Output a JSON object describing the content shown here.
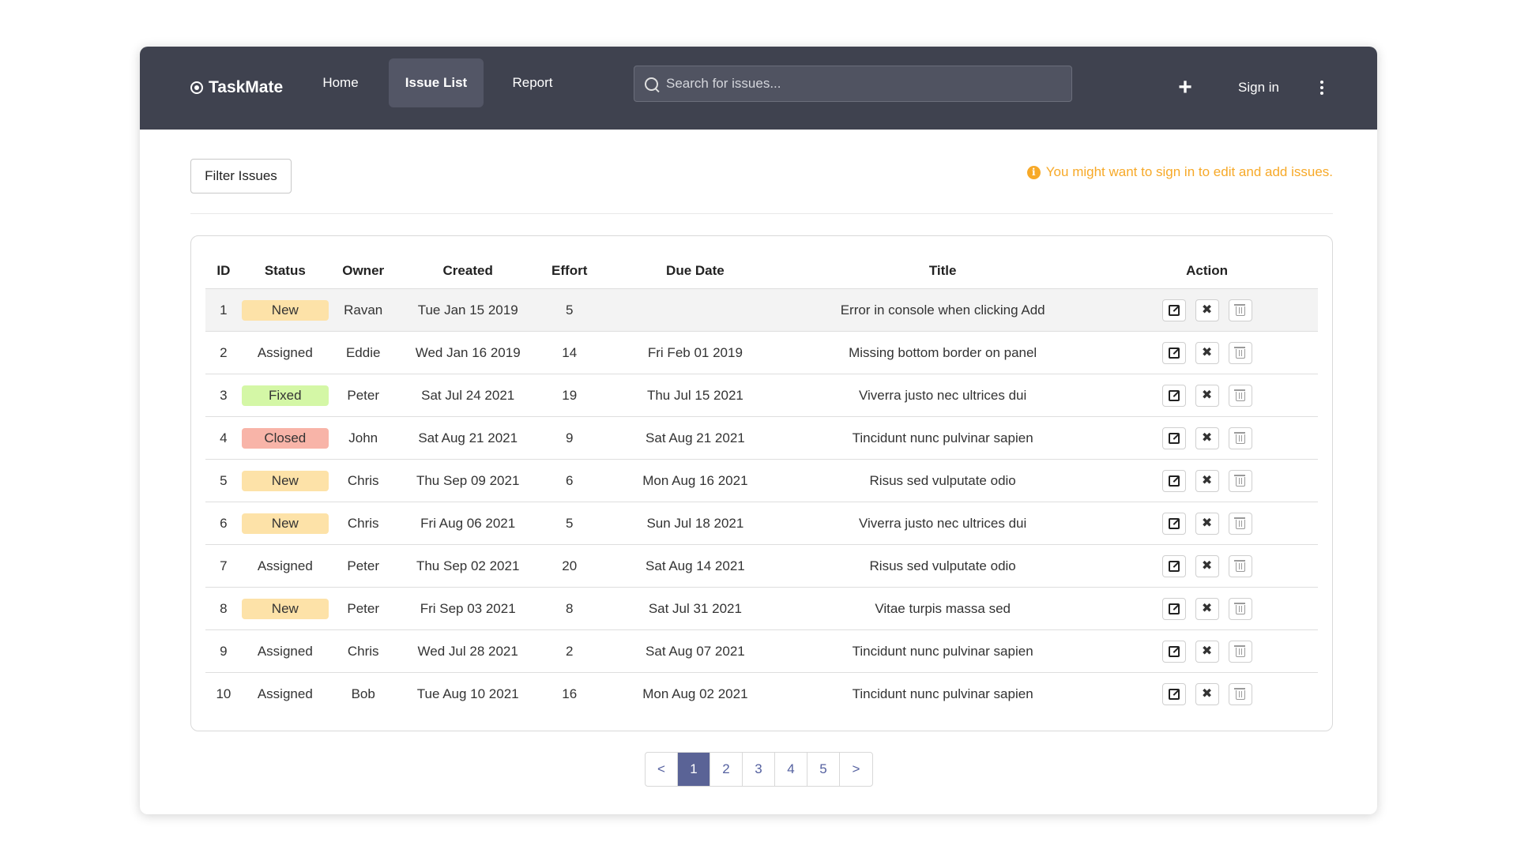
{
  "navbar": {
    "brand": "TaskMate",
    "home": "Home",
    "issue_list": "Issue List",
    "report": "Report",
    "search_placeholder": "Search for issues...",
    "plus": "+",
    "sign_in": "Sign in"
  },
  "filter_button": "Filter Issues",
  "notice": "You might want to sign in to edit and add issues.",
  "colors": {
    "navbar_bg": "#3f424f",
    "notice": "#f7a928",
    "badge_new": "#fde2a8",
    "badge_fixed": "#d4f7a6",
    "badge_closed": "#f8b4a8",
    "page_active": "#5a6396"
  },
  "table": {
    "headers": [
      "ID",
      "Status",
      "Owner",
      "Created",
      "Effort",
      "Due Date",
      "Title",
      "Action"
    ],
    "rows": [
      {
        "id": "1",
        "status": "New",
        "owner": "Ravan",
        "created": "Tue Jan 15 2019",
        "effort": "5",
        "due": "",
        "title": "Error in console when clicking Add"
      },
      {
        "id": "2",
        "status": "Assigned",
        "owner": "Eddie",
        "created": "Wed Jan 16 2019",
        "effort": "14",
        "due": "Fri Feb 01 2019",
        "title": "Missing bottom border on panel"
      },
      {
        "id": "3",
        "status": "Fixed",
        "owner": "Peter",
        "created": "Sat Jul 24 2021",
        "effort": "19",
        "due": "Thu Jul 15 2021",
        "title": "Viverra justo nec ultrices dui"
      },
      {
        "id": "4",
        "status": "Closed",
        "owner": "John",
        "created": "Sat Aug 21 2021",
        "effort": "9",
        "due": "Sat Aug 21 2021",
        "title": "Tincidunt nunc pulvinar sapien"
      },
      {
        "id": "5",
        "status": "New",
        "owner": "Chris",
        "created": "Thu Sep 09 2021",
        "effort": "6",
        "due": "Mon Aug 16 2021",
        "title": "Risus sed vulputate odio"
      },
      {
        "id": "6",
        "status": "New",
        "owner": "Chris",
        "created": "Fri Aug 06 2021",
        "effort": "5",
        "due": "Sun Jul 18 2021",
        "title": "Viverra justo nec ultrices dui"
      },
      {
        "id": "7",
        "status": "Assigned",
        "owner": "Peter",
        "created": "Thu Sep 02 2021",
        "effort": "20",
        "due": "Sat Aug 14 2021",
        "title": "Risus sed vulputate odio"
      },
      {
        "id": "8",
        "status": "New",
        "owner": "Peter",
        "created": "Fri Sep 03 2021",
        "effort": "8",
        "due": "Sat Jul 31 2021",
        "title": "Vitae turpis massa sed"
      },
      {
        "id": "9",
        "status": "Assigned",
        "owner": "Chris",
        "created": "Wed Jul 28 2021",
        "effort": "2",
        "due": "Sat Aug 07 2021",
        "title": "Tincidunt nunc pulvinar sapien"
      },
      {
        "id": "10",
        "status": "Assigned",
        "owner": "Bob",
        "created": "Tue Aug 10 2021",
        "effort": "16",
        "due": "Mon Aug 02 2021",
        "title": "Tincidunt nunc pulvinar sapien"
      }
    ]
  },
  "pagination": {
    "prev": "<",
    "pages": [
      "1",
      "2",
      "3",
      "4",
      "5"
    ],
    "next": ">",
    "active": "1"
  }
}
